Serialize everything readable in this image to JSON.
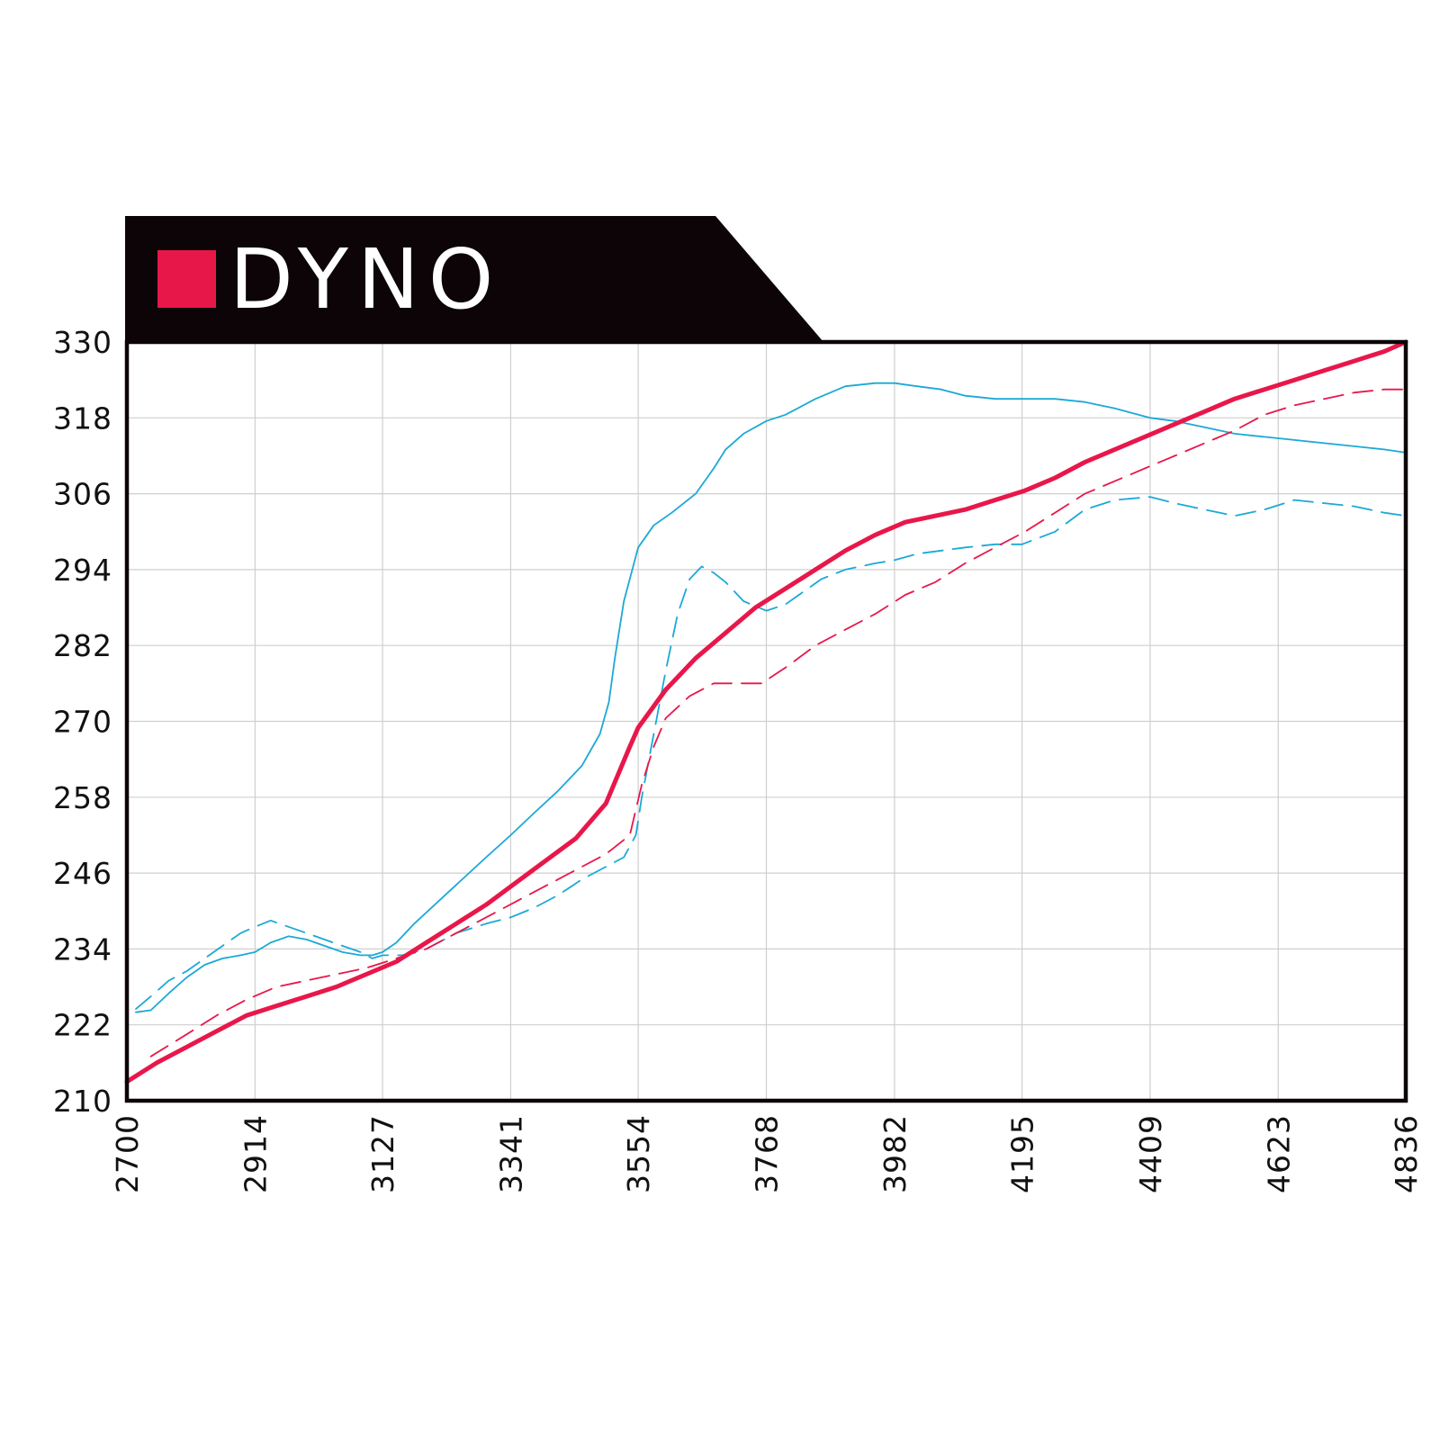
{
  "header": {
    "title": "DYNO",
    "accent_color": "#e8174a",
    "banner_color": "#0c0406"
  },
  "chart_data": {
    "type": "line",
    "title": "DYNO",
    "xlabel": "",
    "ylabel": "",
    "xlim": [
      2700,
      4836
    ],
    "ylim": [
      210,
      330
    ],
    "grid": true,
    "x_ticks": [
      "2700",
      "2914",
      "3127",
      "3341",
      "3554",
      "3768",
      "3982",
      "4195",
      "4409",
      "4623",
      "4836"
    ],
    "y_ticks": [
      "330",
      "318",
      "306",
      "294",
      "282",
      "270",
      "258",
      "246",
      "234",
      "222",
      "210"
    ],
    "series": [
      {
        "color": "#e8174a",
        "style": "solid",
        "width": 5,
        "x": [
          2700,
          2750,
          2800,
          2850,
          2900,
          2950,
          3000,
          3050,
          3100,
          3150,
          3200,
          3250,
          3300,
          3350,
          3400,
          3450,
          3500,
          3540,
          3554,
          3600,
          3650,
          3700,
          3750,
          3800,
          3850,
          3900,
          3950,
          4000,
          4050,
          4100,
          4150,
          4200,
          4250,
          4300,
          4350,
          4400,
          4450,
          4500,
          4550,
          4600,
          4650,
          4700,
          4750,
          4800,
          4836
        ],
        "y": [
          213,
          216,
          218.5,
          221,
          223.5,
          225,
          226.5,
          228,
          230,
          232,
          235,
          238,
          241,
          244.5,
          248,
          251.5,
          257,
          266,
          269,
          275,
          280,
          284,
          288,
          291,
          294,
          297,
          299.5,
          301.5,
          302.5,
          303.5,
          305,
          306.5,
          308.5,
          311,
          313,
          315,
          317,
          319,
          321,
          322.5,
          324,
          325.5,
          327,
          328.5,
          330
        ]
      },
      {
        "color": "#e8174a",
        "style": "dashed",
        "width": 1.8,
        "x": [
          2740,
          2800,
          2850,
          2900,
          2950,
          3000,
          3050,
          3100,
          3150,
          3200,
          3250,
          3300,
          3350,
          3400,
          3450,
          3500,
          3540,
          3560,
          3580,
          3600,
          3640,
          3680,
          3720,
          3760,
          3800,
          3850,
          3900,
          3950,
          4000,
          4050,
          4100,
          4150,
          4200,
          4250,
          4300,
          4350,
          4400,
          4450,
          4500,
          4550,
          4600,
          4650,
          4700,
          4750,
          4800,
          4836
        ],
        "y": [
          217,
          220.5,
          223.5,
          226,
          228,
          229,
          230,
          231,
          232.5,
          234,
          236.5,
          239,
          241.5,
          244,
          246.5,
          249,
          252,
          260,
          266,
          270.5,
          274,
          276,
          276,
          276,
          278.5,
          282,
          284.5,
          287,
          290,
          292,
          295,
          297.5,
          300,
          303,
          306,
          308,
          310,
          312,
          314,
          316,
          318.5,
          320,
          321,
          322,
          322.5,
          322.5
        ]
      },
      {
        "color": "#1ba9d6",
        "style": "solid",
        "width": 1.8,
        "x": [
          2715,
          2740,
          2770,
          2800,
          2830,
          2860,
          2890,
          2914,
          2940,
          2970,
          3000,
          3030,
          3060,
          3090,
          3110,
          3127,
          3150,
          3180,
          3220,
          3260,
          3300,
          3341,
          3380,
          3420,
          3460,
          3490,
          3505,
          3515,
          3530,
          3554,
          3580,
          3610,
          3650,
          3680,
          3700,
          3730,
          3768,
          3800,
          3850,
          3900,
          3950,
          3982,
          4020,
          4060,
          4100,
          4150,
          4195,
          4250,
          4300,
          4350,
          4409,
          4450,
          4500,
          4550,
          4600,
          4650,
          4700,
          4750,
          4800,
          4836
        ],
        "y": [
          224,
          224.3,
          227,
          229.5,
          231.5,
          232.5,
          233,
          233.5,
          235,
          236,
          235.5,
          234.5,
          233.5,
          233,
          233,
          233.5,
          235,
          238,
          241.5,
          245,
          248.5,
          252,
          255.5,
          259,
          263,
          268,
          273,
          280,
          289,
          297.5,
          301,
          303,
          306,
          310,
          313,
          315.5,
          317.5,
          318.5,
          321,
          323,
          323.5,
          323.5,
          323,
          322.5,
          321.5,
          321,
          321,
          321,
          320.5,
          319.5,
          318,
          317.5,
          316.5,
          315.5,
          315,
          314.5,
          314,
          313.5,
          313,
          312.5
        ]
      },
      {
        "color": "#1ba9d6",
        "style": "dashed",
        "width": 1.8,
        "x": [
          2715,
          2740,
          2770,
          2800,
          2830,
          2860,
          2890,
          2914,
          2940,
          2970,
          3000,
          3030,
          3060,
          3090,
          3110,
          3127,
          3160,
          3200,
          3250,
          3300,
          3341,
          3380,
          3420,
          3460,
          3500,
          3530,
          3550,
          3560,
          3580,
          3600,
          3620,
          3640,
          3660,
          3680,
          3700,
          3730,
          3768,
          3800,
          3830,
          3860,
          3900,
          3950,
          3982,
          4020,
          4060,
          4100,
          4150,
          4195,
          4250,
          4300,
          4350,
          4409,
          4450,
          4500,
          4550,
          4600,
          4650,
          4700,
          4750,
          4800,
          4836
        ],
        "y": [
          224.5,
          226.5,
          229,
          230.5,
          232.5,
          234.5,
          236.5,
          237.5,
          238.5,
          237.5,
          236.5,
          235.5,
          234.5,
          233.5,
          232.5,
          233,
          233,
          234,
          236.5,
          238,
          239,
          240.5,
          242.5,
          245,
          247,
          248.5,
          252,
          258,
          268,
          278,
          287,
          292.5,
          294.5,
          293.5,
          292,
          289,
          287.5,
          288.5,
          290.5,
          292.5,
          294,
          295,
          295.5,
          296.5,
          297,
          297.5,
          298,
          298,
          300,
          303.5,
          305,
          305.5,
          304.5,
          303.5,
          302.5,
          303.5,
          305,
          304.5,
          304,
          303,
          302.5
        ]
      }
    ]
  }
}
